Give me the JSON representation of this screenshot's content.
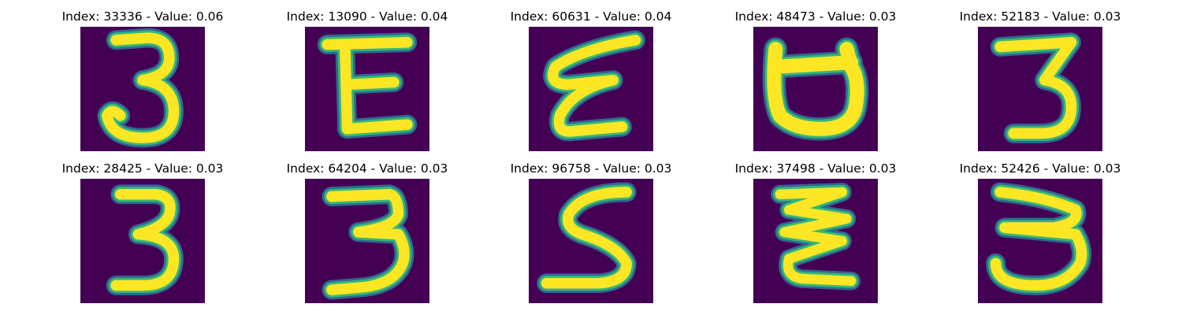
{
  "panels": [
    {
      "title": "Index: 33336 - Value: 0.06",
      "glyph": "digit-3-icon"
    },
    {
      "title": "Index: 13090 - Value: 0.04",
      "glyph": "letter-E-icon"
    },
    {
      "title": "Index: 60631 - Value: 0.04",
      "glyph": "cursive-E-icon"
    },
    {
      "title": "Index: 48473 - Value: 0.03",
      "glyph": "letter-U-icon"
    },
    {
      "title": "Index: 52183 - Value: 0.03",
      "glyph": "digit-3-icon"
    },
    {
      "title": "Index: 28425 - Value: 0.03",
      "glyph": "digit-3-icon"
    },
    {
      "title": "Index: 64204 - Value: 0.03",
      "glyph": "digit-3-icon"
    },
    {
      "title": "Index: 96758 - Value: 0.03",
      "glyph": "digit-5-icon"
    },
    {
      "title": "Index: 37498 - Value: 0.03",
      "glyph": "zigzag-3-icon"
    },
    {
      "title": "Index: 52426 - Value: 0.03",
      "glyph": "digit-3-icon"
    }
  ],
  "colors": {
    "background": "#440154",
    "stroke_core": "#fde725",
    "stroke_edge": "#35b779",
    "stroke_halo": "#31688e"
  }
}
